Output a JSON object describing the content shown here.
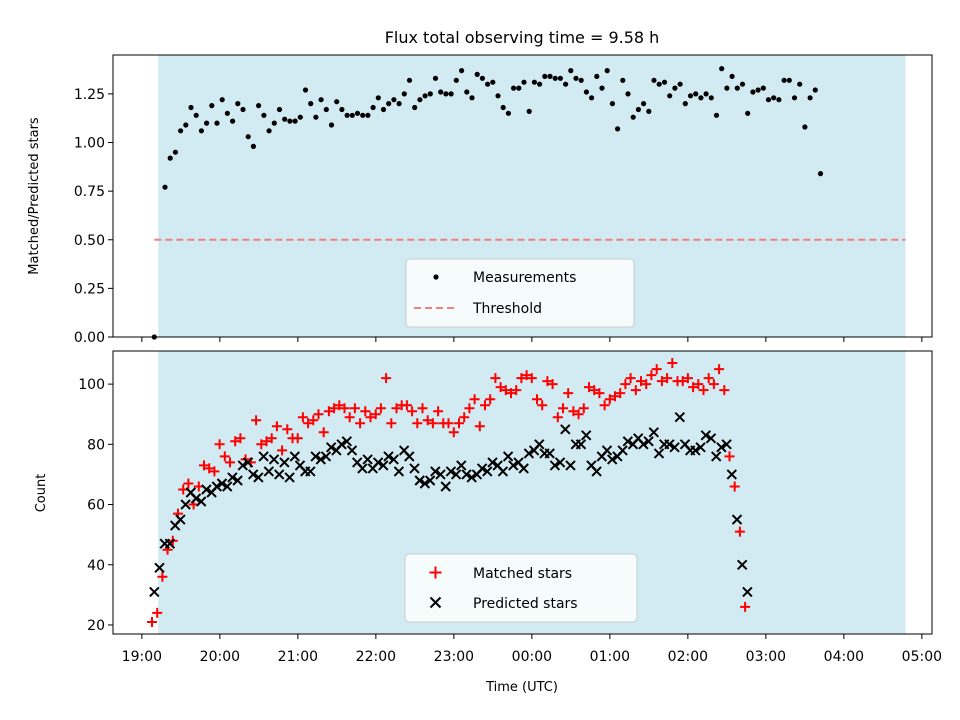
{
  "chart_data": [
    {
      "type": "scatter",
      "title": "Flux total observing time = 9.58 h",
      "ylabel": "Matched/Predicted stars",
      "xlabel": "",
      "ylim": [
        0,
        1.45
      ],
      "yticks": [
        "0.00",
        "0.25",
        "0.50",
        "0.75",
        "1.00",
        "1.25"
      ],
      "ytick_values": [
        0,
        0.25,
        0.5,
        0.75,
        1.0,
        1.25
      ],
      "xlim_hours": [
        18.63,
        29.13
      ],
      "observing_window_hours": [
        19.21,
        28.79
      ],
      "threshold": 0.5,
      "legend": [
        "Measurements",
        "Threshold"
      ],
      "colors": {
        "measurements": "#000000",
        "threshold": "#f08080",
        "window": "#add8e6"
      },
      "series": [
        {
          "name": "Measurements",
          "x_start_hours": 19.23,
          "x_step_hours": 0.0667,
          "values": [
            0.0,
            0.77,
            0.92,
            0.95,
            1.06,
            1.09,
            1.18,
            1.14,
            1.06,
            1.1,
            1.19,
            1.1,
            1.22,
            1.15,
            1.11,
            1.2,
            1.17,
            1.03,
            0.98,
            1.19,
            1.14,
            1.06,
            1.1,
            1.17,
            1.12,
            1.11,
            1.11,
            1.13,
            1.27,
            1.2,
            1.13,
            1.22,
            1.17,
            1.09,
            1.21,
            1.17,
            1.14,
            1.14,
            1.15,
            1.14,
            1.14,
            1.18,
            1.23,
            1.17,
            1.2,
            1.22,
            1.2,
            1.25,
            1.32,
            1.18,
            1.22,
            1.24,
            1.25,
            1.33,
            1.26,
            1.25,
            1.25,
            1.32,
            1.37,
            1.26,
            1.23,
            1.35,
            1.33,
            1.3,
            1.31,
            1.24,
            1.18,
            1.15,
            1.28,
            1.28,
            1.31,
            1.16,
            1.31,
            1.3,
            1.34,
            1.34,
            1.33,
            1.33,
            1.3,
            1.37,
            1.33,
            1.32,
            1.26,
            1.23,
            1.34,
            1.28,
            1.37,
            1.2,
            1.07,
            1.32,
            1.25,
            1.13,
            1.17,
            1.2,
            1.16,
            1.32,
            1.3,
            1.31,
            1.24,
            1.28,
            1.3,
            1.2,
            1.24,
            1.25,
            1.23,
            1.25,
            1.23,
            1.14,
            1.38,
            1.28,
            1.34,
            1.28,
            1.3,
            1.15,
            1.26,
            1.27,
            1.28,
            1.22,
            1.23,
            1.22,
            1.32,
            1.32,
            1.23,
            1.3,
            1.08,
            1.23,
            1.27,
            0.84
          ]
        }
      ]
    },
    {
      "type": "scatter",
      "title": "",
      "ylabel": "Count",
      "xlabel": "Time (UTC)",
      "ylim": [
        17,
        111
      ],
      "yticks": [
        "20",
        "40",
        "60",
        "80",
        "100"
      ],
      "ytick_values": [
        20,
        40,
        60,
        80,
        100
      ],
      "xlim_hours": [
        18.63,
        29.13
      ],
      "xticks": [
        "19:00",
        "20:00",
        "21:00",
        "22:00",
        "23:00",
        "00:00",
        "01:00",
        "02:00",
        "03:00",
        "04:00",
        "05:00"
      ],
      "xtick_hours": [
        19,
        20,
        21,
        22,
        23,
        24,
        25,
        26,
        27,
        28,
        29
      ],
      "observing_window_hours": [
        19.21,
        28.79
      ],
      "legend": [
        "Matched stars",
        "Predicted stars"
      ],
      "colors": {
        "matched": "#ff0000",
        "predicted": "#000000",
        "window": "#add8e6"
      },
      "series": [
        {
          "name": "Matched stars",
          "x_start_hours": 19.13,
          "x_step_hours": 0.0667,
          "values": [
            21,
            24,
            36,
            45,
            48,
            57,
            65,
            67,
            60,
            66,
            73,
            72,
            71,
            80,
            76,
            74,
            81,
            82,
            75,
            74,
            88,
            80,
            81,
            82,
            86,
            78,
            85,
            82,
            82,
            89,
            87,
            88,
            90,
            84,
            91,
            92,
            93,
            92,
            89,
            92,
            87,
            91,
            89,
            90,
            92,
            102,
            87,
            92,
            93,
            93,
            91,
            87,
            92,
            88,
            87,
            91,
            87,
            87,
            84,
            87,
            89,
            92,
            95,
            86,
            93,
            95,
            102,
            99,
            98,
            97,
            98,
            102,
            103,
            102,
            95,
            93,
            101,
            100,
            89,
            92,
            97,
            91,
            90,
            92,
            99,
            98,
            97,
            93,
            95,
            96,
            97,
            100,
            102,
            98,
            101,
            100,
            103,
            105,
            101,
            102,
            107,
            101,
            101,
            102,
            99,
            100,
            98,
            102,
            100,
            105,
            98,
            76,
            66,
            51,
            26
          ]
        },
        {
          "name": "Predicted stars",
          "x_start_hours": 19.13,
          "x_step_hours": 0.0667,
          "values": [
            31,
            39,
            47,
            47,
            53,
            55,
            60,
            64,
            62,
            61,
            65,
            64,
            66,
            67,
            66,
            69,
            68,
            73,
            74,
            70,
            69,
            76,
            71,
            75,
            70,
            74,
            69,
            76,
            73,
            71,
            71,
            76,
            75,
            76,
            79,
            78,
            80,
            81,
            78,
            74,
            72,
            75,
            72,
            74,
            73,
            76,
            75,
            71,
            78,
            76,
            72,
            68,
            67,
            68,
            71,
            70,
            66,
            71,
            70,
            73,
            70,
            69,
            70,
            72,
            71,
            74,
            73,
            71,
            76,
            73,
            74,
            72,
            77,
            78,
            80,
            77,
            77,
            73,
            74,
            85,
            73,
            80,
            80,
            83,
            73,
            71,
            76,
            78,
            75,
            76,
            78,
            81,
            80,
            82,
            80,
            81,
            84,
            77,
            80,
            80,
            79,
            89,
            80,
            78,
            78,
            79,
            83,
            82,
            76,
            79,
            80,
            70,
            55,
            40,
            31
          ]
        }
      ]
    }
  ]
}
